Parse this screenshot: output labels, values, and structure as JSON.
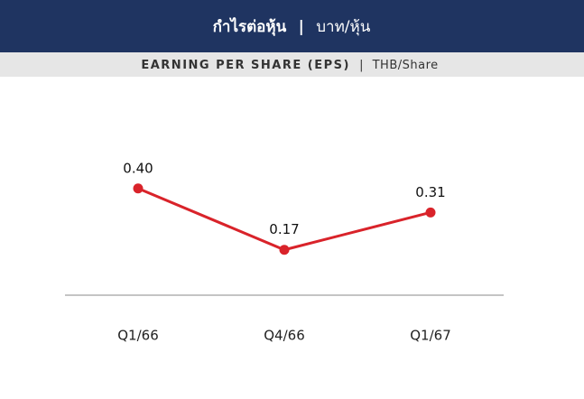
{
  "chart_data": {
    "type": "line",
    "title": {
      "main": "กำไรต่อหุ้น",
      "separator": "|",
      "unit": "บาท/หุ้น"
    },
    "subtitle": {
      "main": "EARNING PER SHARE (EPS)",
      "separator": "|",
      "unit": "THB/Share"
    },
    "categories": [
      "Q1/66",
      "Q4/66",
      "Q1/67"
    ],
    "series": [
      {
        "name": "EPS",
        "color": "#d9232a",
        "values": [
          0.4,
          0.17,
          0.31
        ],
        "value_labels": [
          "0.40",
          "0.17",
          "0.31"
        ]
      }
    ],
    "ylim": [
      0,
      0.8
    ]
  }
}
